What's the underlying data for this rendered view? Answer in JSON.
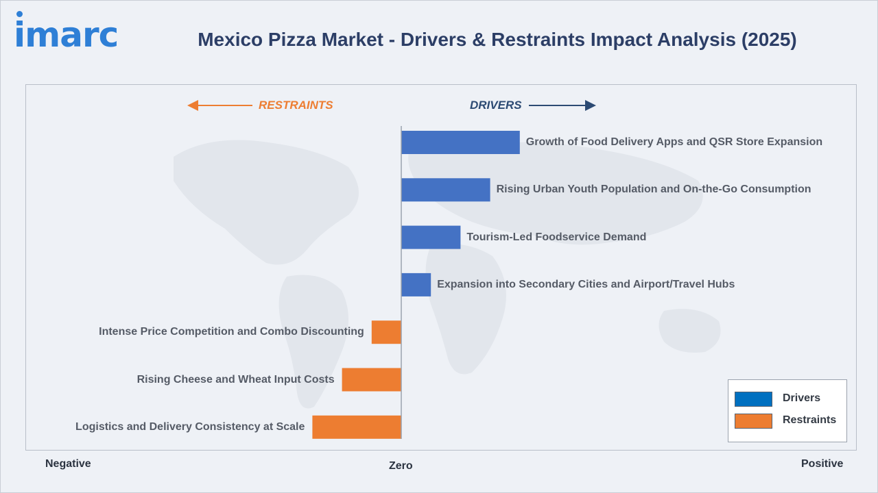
{
  "logo": {
    "text": "imarc"
  },
  "title": "Mexico Pizza Market - Drivers & Restraints Impact Analysis (2025)",
  "chart_data": {
    "type": "bar",
    "orientation": "horizontal",
    "direction_labels": {
      "left": "RESTRAINTS",
      "right": "DRIVERS"
    },
    "axis_words": {
      "negative": "Negative",
      "zero": "Zero",
      "positive": "Positive"
    },
    "series": [
      {
        "name": "Drivers",
        "color": "#4472c4",
        "items": [
          {
            "label": "Growth of Food Delivery Apps and QSR Store Expansion",
            "value": 4
          },
          {
            "label": "Rising Urban Youth Population and On-the-Go Consumption",
            "value": 3
          },
          {
            "label": "Tourism-Led Foodservice Demand",
            "value": 2
          },
          {
            "label": "Expansion into Secondary Cities and Airport/Travel Hubs",
            "value": 1
          }
        ]
      },
      {
        "name": "Restraints",
        "color": "#ed7d31",
        "items": [
          {
            "label": "Intense Price Competition and Combo Discounting",
            "value": -1
          },
          {
            "label": "Rising Cheese and Wheat Input Costs",
            "value": -2
          },
          {
            "label": "Logistics and Delivery Consistency at Scale",
            "value": -3
          }
        ]
      }
    ],
    "legend": {
      "position": "bottom-right",
      "swatch_colors": [
        "#0070c0",
        "#ed7d31"
      ]
    },
    "grid": false
  }
}
